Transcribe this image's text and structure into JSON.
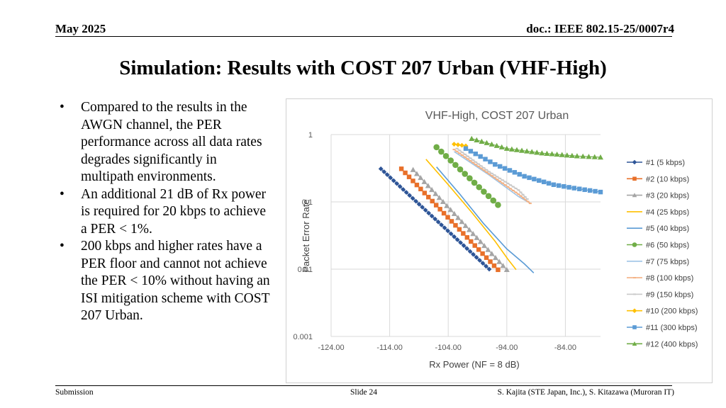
{
  "header": {
    "date": "May 2025",
    "doc": "doc.: IEEE 802.15-25/0007r4"
  },
  "slide_title": "Simulation: Results with COST 207 Urban (VHF-High)",
  "bullets": [
    "Compared to the results in the AWGN channel, the PER performance across all data rates degrades significantly in multipath environments.",
    "An additional 21 dB of Rx power is required for 20 kbps to achieve a PER < 1%.",
    "200 kbps and higher rates have a PER floor and cannot not achieve the PER < 10% without having an ISI mitigation scheme with COST 207 Urban."
  ],
  "bullet_symbol": "•",
  "footer": {
    "left": "Submission",
    "center": "Slide 24",
    "right": "S. Kajita (STE Japan, Inc.), S. Kitazawa (Muroran IT)"
  },
  "chart_data": {
    "type": "line",
    "title": "VHF-High, COST 207 Urban",
    "xlabel": "Rx Power (NF = 8 dB)",
    "ylabel": "Packet Error Rate",
    "xlim": [
      -124,
      -78
    ],
    "ylim": [
      0.001,
      1
    ],
    "yscale": "log",
    "x_ticks": [
      "-124.00",
      "-114.00",
      "-104.00",
      "-94.00",
      "-84.00"
    ],
    "y_ticks": [
      "1",
      "0.1",
      "0.01",
      "0.001"
    ],
    "grid": true,
    "legend_position": "right",
    "series": [
      {
        "name": "#1 (5 kbps)",
        "color": "#2e5597",
        "marker": "diamond",
        "x": [
          -115.5,
          -97.0
        ],
        "y": [
          0.31,
          0.01
        ]
      },
      {
        "name": "#2 (10 kbps)",
        "color": "#e8702a",
        "marker": "square",
        "x": [
          -112.0,
          -95.5
        ],
        "y": [
          0.31,
          0.0098
        ]
      },
      {
        "name": "#3 (20 kbps)",
        "color": "#a5a5a5",
        "marker": "triangle",
        "x": [
          -110.0,
          -94.0
        ],
        "y": [
          0.3,
          0.0098
        ]
      },
      {
        "name": "#4 (25 kbps)",
        "color": "#ffc000",
        "marker": "none",
        "x": [
          -107.8,
          -104.0,
          -100.0,
          -96.0,
          -93.8,
          -92.4
        ],
        "y": [
          0.43,
          0.18,
          0.07,
          0.026,
          0.014,
          0.0098
        ]
      },
      {
        "name": "#5 (40 kbps)",
        "color": "#5b9bd5",
        "marker": "none",
        "x": [
          -106.0,
          -102.0,
          -98.0,
          -94.0,
          -91.0,
          -89.4
        ],
        "y": [
          0.33,
          0.13,
          0.048,
          0.02,
          0.012,
          0.0088
        ]
      },
      {
        "name": "#6 (50 kbps)",
        "color": "#70ad47",
        "marker": "circle",
        "x": [
          -106.0,
          -95.5
        ],
        "y": [
          0.65,
          0.09
        ]
      },
      {
        "name": "#7 (75 kbps)",
        "color": "#9dc3e6",
        "marker": "none",
        "x": [
          -103.0,
          -97.0,
          -92.0,
          -90.0
        ],
        "y": [
          0.56,
          0.25,
          0.12,
          0.095
        ]
      },
      {
        "name": "#8 (100 kbps)",
        "color": "#f4b183",
        "marker": "dash",
        "x": [
          -103.0,
          -97.0,
          -92.0,
          -90.0
        ],
        "y": [
          0.6,
          0.26,
          0.13,
          0.095
        ]
      },
      {
        "name": "#9 (150 kbps)",
        "color": "#c9c9c9",
        "marker": "dash",
        "x": [
          -102.5,
          -97.0,
          -92.0,
          -90.5
        ],
        "y": [
          0.62,
          0.28,
          0.15,
          0.11
        ]
      },
      {
        "name": "#10 (200 kbps)",
        "color": "#ffc000",
        "marker": "diamond",
        "x": [
          -103.0,
          -101.0
        ],
        "y": [
          0.72,
          0.68
        ]
      },
      {
        "name": "#11 (300 kbps)",
        "color": "#5b9bd5",
        "marker": "square",
        "x": [
          -101.0,
          -96.0,
          -91.0,
          -86.0,
          -82.5,
          -78.0
        ],
        "y": [
          0.62,
          0.36,
          0.24,
          0.18,
          0.16,
          0.14
        ]
      },
      {
        "name": "#12 (400 kbps)",
        "color": "#70ad47",
        "marker": "triangle",
        "x": [
          -100.0,
          -94.0,
          -88.0,
          -82.0,
          -78.0
        ],
        "y": [
          0.87,
          0.62,
          0.53,
          0.48,
          0.46
        ]
      }
    ]
  }
}
